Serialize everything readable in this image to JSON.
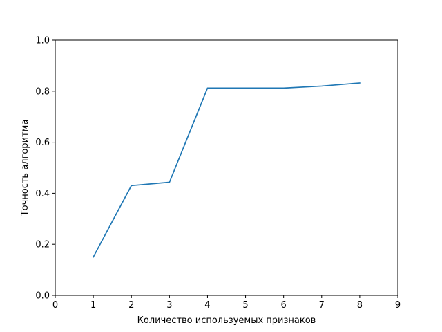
{
  "chart_data": {
    "type": "line",
    "title": "",
    "xlabel": "Количество используемых признаков",
    "ylabel": "Точность алгоритма",
    "xlim": [
      0,
      9
    ],
    "ylim": [
      0.0,
      1.0
    ],
    "x_ticks": [
      0,
      1,
      2,
      3,
      4,
      5,
      6,
      7,
      8,
      9
    ],
    "x_tick_labels": [
      "0",
      "1",
      "2",
      "3",
      "4",
      "5",
      "6",
      "7",
      "8",
      "9"
    ],
    "y_ticks": [
      0.0,
      0.2,
      0.4,
      0.6,
      0.8,
      1.0
    ],
    "y_tick_labels": [
      "0.0",
      "0.2",
      "0.4",
      "0.6",
      "0.8",
      "1.0"
    ],
    "grid": false,
    "legend": "none",
    "series": [
      {
        "color": "#1f77b4",
        "x": [
          1,
          2,
          3,
          4,
          5,
          6,
          7,
          8
        ],
        "y": [
          0.15,
          0.43,
          0.443,
          0.812,
          0.812,
          0.812,
          0.82,
          0.832
        ]
      }
    ]
  }
}
